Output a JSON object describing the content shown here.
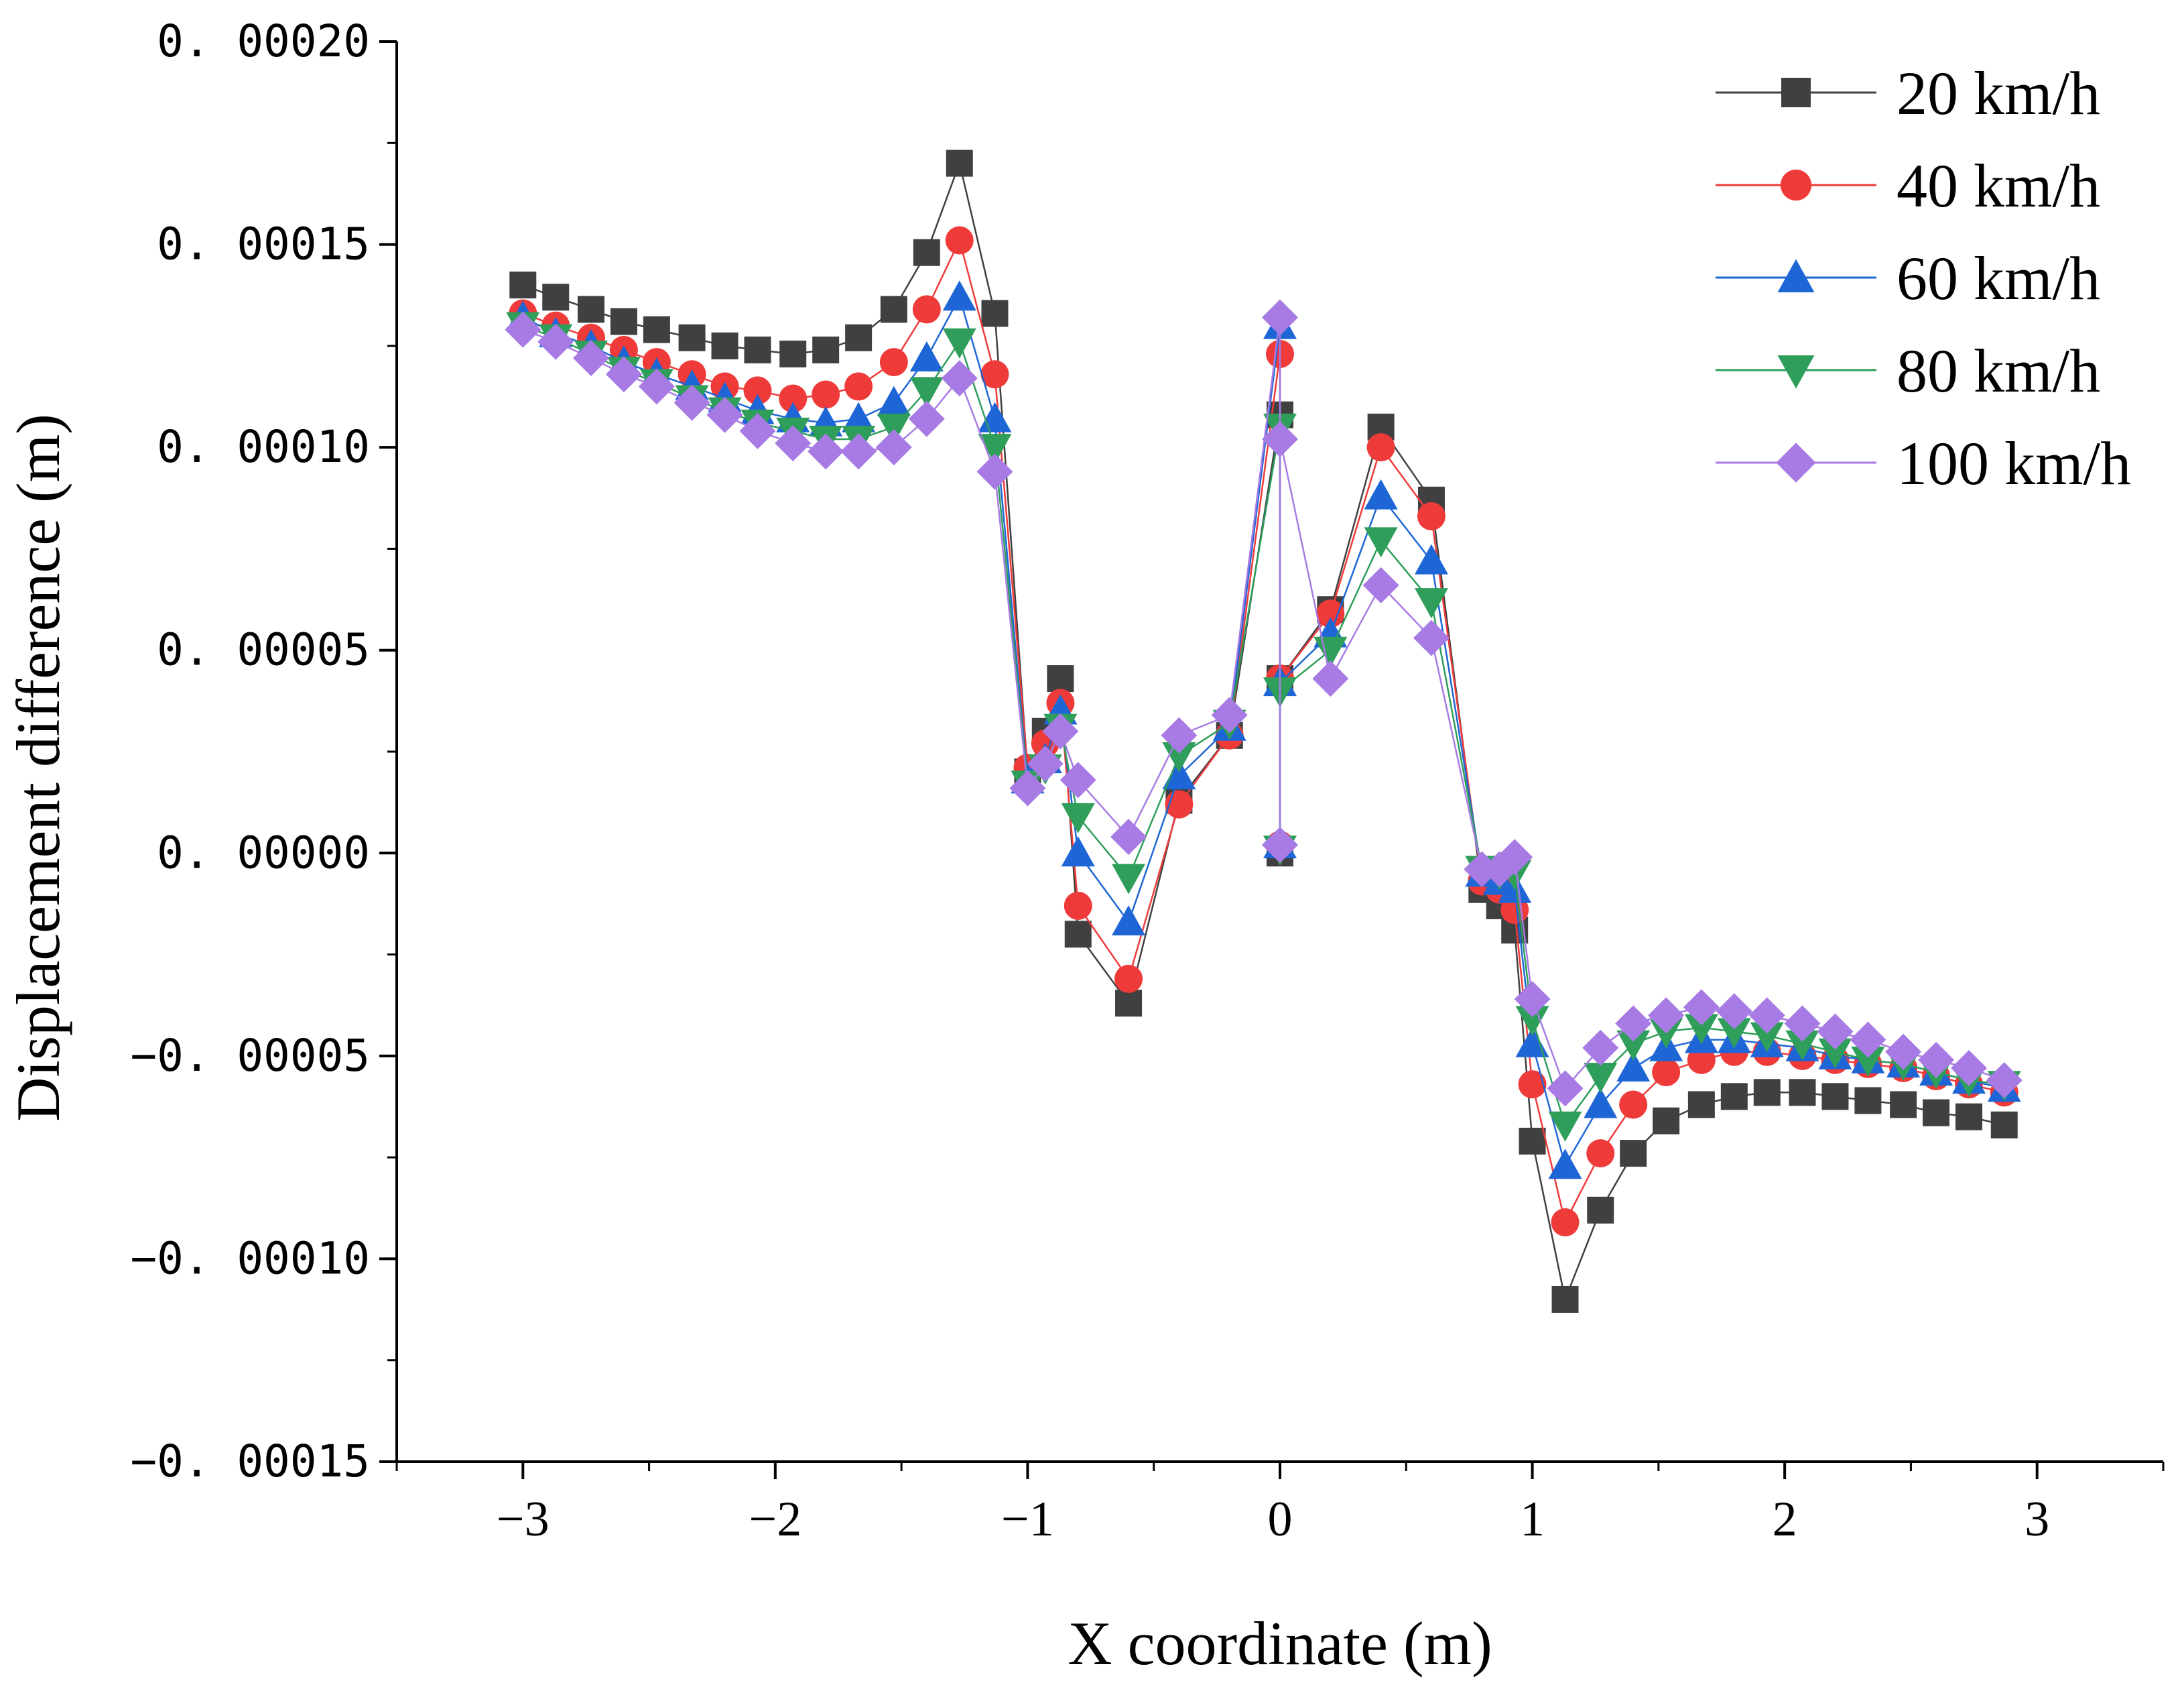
{
  "chart_data": {
    "type": "line",
    "title": "",
    "xlabel": "X coordinate (m)",
    "ylabel": "Displacement difference (m)",
    "xlim": [
      -3.5,
      3.5
    ],
    "ylim": [
      -0.00015,
      0.0002
    ],
    "x_ticks": [
      -3,
      -2,
      -1,
      0,
      1,
      2,
      3
    ],
    "x_tick_labels": [
      "−3",
      "−2",
      "−1",
      "0",
      "1",
      "2",
      "3"
    ],
    "y_ticks": [
      0.0002,
      0.00015,
      0.0001,
      5e-05,
      0.0,
      -5e-05,
      -0.0001,
      -0.00015
    ],
    "y_tick_labels": [
      "0. 00020",
      "0. 00015",
      "0. 00010",
      "0. 00005",
      "0. 00000",
      "−0. 00005",
      "−0. 00010",
      "−0. 00015"
    ],
    "grid": false,
    "legend_position": "top-right",
    "x": [
      -3.0,
      -2.87,
      -2.73,
      -2.6,
      -2.47,
      -2.33,
      -2.2,
      -2.07,
      -1.93,
      -1.8,
      -1.67,
      -1.53,
      -1.4,
      -1.27,
      -1.13,
      -1.0,
      -0.93,
      -0.87,
      -0.8,
      -0.6,
      -0.4,
      -0.2,
      0.0,
      0.0,
      0.0,
      0.2,
      0.4,
      0.6,
      0.8,
      0.87,
      0.93,
      1.0,
      1.13,
      1.27,
      1.4,
      1.53,
      1.67,
      1.8,
      1.93,
      2.07,
      2.2,
      2.33,
      2.47,
      2.6,
      2.73,
      2.87
    ],
    "series": [
      {
        "name": "20 km/h",
        "color": "#404040",
        "marker": "square",
        "values": [
          0.00014,
          0.000137,
          0.000134,
          0.000131,
          0.000129,
          0.000127,
          0.000125,
          0.000124,
          0.000123,
          0.000124,
          0.000127,
          0.000134,
          0.000148,
          0.00017,
          0.000133,
          2e-05,
          3e-05,
          4.3e-05,
          -2e-05,
          -3.7e-05,
          1.3e-05,
          2.9e-05,
          0.000108,
          0.0,
          4.3e-05,
          6e-05,
          0.000105,
          8.7e-05,
          -9e-06,
          -1.3e-05,
          -1.9e-05,
          -7.1e-05,
          -0.00011,
          -8.8e-05,
          -7.4e-05,
          -6.6e-05,
          -6.2e-05,
          -6e-05,
          -5.9e-05,
          -5.9e-05,
          -6e-05,
          -6.1e-05,
          -6.2e-05,
          -6.4e-05,
          -6.5e-05,
          -6.7e-05
        ]
      },
      {
        "name": "40 km/h",
        "color": "#ef3a3a",
        "marker": "circle",
        "values": [
          0.000133,
          0.00013,
          0.000127,
          0.000124,
          0.000121,
          0.000118,
          0.000115,
          0.000114,
          0.000112,
          0.000113,
          0.000115,
          0.000121,
          0.000134,
          0.000151,
          0.000118,
          2.1e-05,
          2.7e-05,
          3.7e-05,
          -1.3e-05,
          -3.1e-05,
          1.2e-05,
          2.9e-05,
          0.000123,
          2e-06,
          4.3e-05,
          5.9e-05,
          0.0001,
          8.3e-05,
          -7e-06,
          -9e-06,
          -1.4e-05,
          -5.7e-05,
          -9.1e-05,
          -7.4e-05,
          -6.2e-05,
          -5.4e-05,
          -5.1e-05,
          -4.9e-05,
          -4.9e-05,
          -5e-05,
          -5.1e-05,
          -5.2e-05,
          -5.3e-05,
          -5.5e-05,
          -5.7e-05,
          -5.9e-05
        ]
      },
      {
        "name": "60 km/h",
        "color": "#1e66d6",
        "marker": "triangle-up",
        "values": [
          0.000132,
          0.000128,
          0.000125,
          0.000121,
          0.000118,
          0.000115,
          0.000112,
          0.000109,
          0.000107,
          0.000106,
          0.000107,
          0.000111,
          0.000122,
          0.000137,
          0.000107,
          1.8e-05,
          2.3e-05,
          3.5e-05,
          0.0,
          -1.7e-05,
          1.9e-05,
          3.1e-05,
          0.00013,
          2e-06,
          4.2e-05,
          5.4e-05,
          8.8e-05,
          7.2e-05,
          -5e-06,
          -7e-06,
          -9e-06,
          -4.7e-05,
          -7.7e-05,
          -6.2e-05,
          -5.3e-05,
          -4.8e-05,
          -4.6e-05,
          -4.6e-05,
          -4.7e-05,
          -4.8e-05,
          -5e-05,
          -5.1e-05,
          -5.2e-05,
          -5.4e-05,
          -5.6e-05,
          -5.8e-05
        ]
      },
      {
        "name": "80 km/h",
        "color": "#2e9e5a",
        "marker": "triangle-down",
        "values": [
          0.00013,
          0.000127,
          0.000123,
          0.000119,
          0.000116,
          0.000112,
          0.000109,
          0.000106,
          0.000104,
          0.000102,
          0.000102,
          0.000105,
          0.000114,
          0.000126,
          0.0001,
          1.7e-05,
          2.1e-05,
          3.1e-05,
          9e-06,
          -6e-06,
          2.4e-05,
          3.2e-05,
          0.000105,
          1e-06,
          4e-05,
          5e-05,
          7.7e-05,
          6.2e-05,
          -4e-06,
          -5e-06,
          -5e-06,
          -4.1e-05,
          -6.7e-05,
          -5.5e-05,
          -4.7e-05,
          -4.4e-05,
          -4.3e-05,
          -4.4e-05,
          -4.5e-05,
          -4.7e-05,
          -4.9e-05,
          -5.1e-05,
          -5.2e-05,
          -5.4e-05,
          -5.6e-05,
          -5.7e-05
        ]
      },
      {
        "name": "100 km/h",
        "color": "#a77be3",
        "marker": "diamond",
        "values": [
          0.000129,
          0.000126,
          0.000122,
          0.000118,
          0.000115,
          0.000111,
          0.000108,
          0.000104,
          0.000101,
          9.9e-05,
          9.9e-05,
          0.0001,
          0.000107,
          0.000117,
          9.4e-05,
          1.6e-05,
          2.2e-05,
          3e-05,
          1.8e-05,
          4e-06,
          2.9e-05,
          3.4e-05,
          0.000132,
          2e-06,
          0.000102,
          4.3e-05,
          6.6e-05,
          5.3e-05,
          -4e-06,
          -4e-06,
          -1e-06,
          -3.6e-05,
          -5.8e-05,
          -4.8e-05,
          -4.2e-05,
          -4e-05,
          -3.8e-05,
          -3.9e-05,
          -4e-05,
          -4.2e-05,
          -4.4e-05,
          -4.6e-05,
          -4.9e-05,
          -5.1e-05,
          -5.3e-05,
          -5.6e-05
        ]
      }
    ]
  }
}
